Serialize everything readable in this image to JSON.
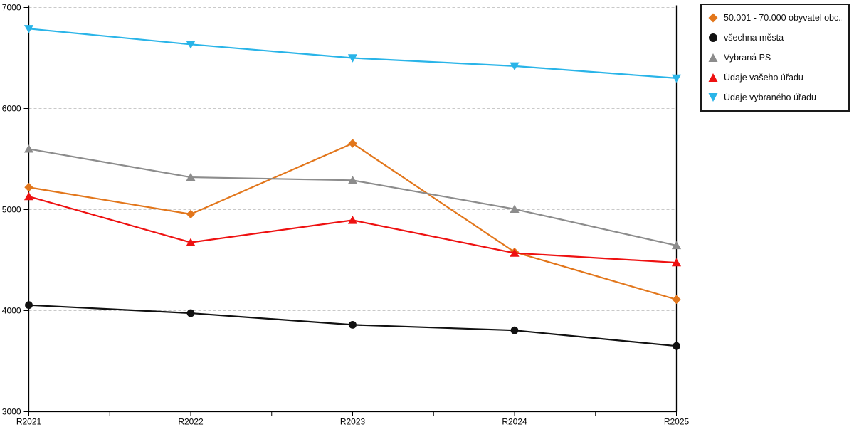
{
  "chart_data": {
    "type": "line",
    "title": "",
    "xlabel": "",
    "ylabel": "",
    "categories": [
      "R2021",
      "R2022",
      "R2023",
      "R2024",
      "R2025"
    ],
    "series": [
      {
        "name": "50.001 - 70.000 obyvatel obc...",
        "color": "#E2761B",
        "marker": "diamond",
        "values": [
          5220,
          4955,
          5655,
          4580,
          4110
        ]
      },
      {
        "name": "všechna města",
        "color": "#111111",
        "marker": "circle",
        "values": [
          4055,
          3975,
          3860,
          3805,
          3650
        ]
      },
      {
        "name": "Vybraná PS",
        "color": "#8C8C8C",
        "marker": "triangle-up",
        "values": [
          5600,
          5320,
          5290,
          5005,
          4645
        ]
      },
      {
        "name": "Údaje vašeho úřadu",
        "color": "#EE1111",
        "marker": "triangle-up",
        "values": [
          5130,
          4675,
          4895,
          4570,
          4475
        ]
      },
      {
        "name": "Údaje vybraného úřadu",
        "color": "#29B4E8",
        "marker": "triangle-down",
        "values": [
          6790,
          6635,
          6500,
          6420,
          6300
        ]
      }
    ],
    "ylim": [
      3000,
      7000
    ],
    "yticks": [
      3000,
      4000,
      5000,
      6000,
      7000
    ],
    "grid": "horizontal-dashed",
    "gridline_color": "#C9C9C9",
    "axis_color": "#000000",
    "legend_position": "top-right"
  }
}
